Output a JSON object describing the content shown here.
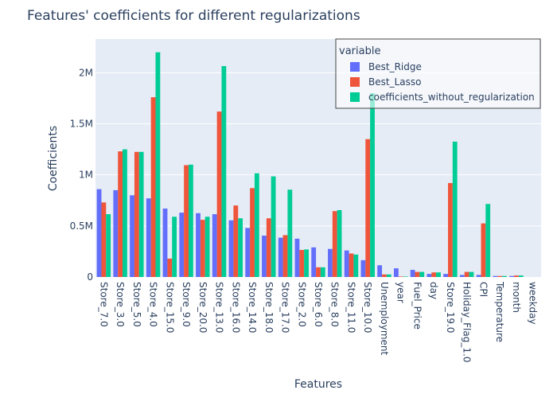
{
  "chart_data": {
    "type": "bar",
    "title": "Features' coefficients for different regularizations",
    "xlabel": "Features",
    "ylabel": "Coefficients",
    "ylim": [
      0,
      2330000
    ],
    "yticks": [
      0,
      500000,
      1000000,
      1500000,
      2000000
    ],
    "ytick_labels": [
      "0",
      "0.5M",
      "1M",
      "1.5M",
      "2M"
    ],
    "grid": true,
    "legend_title": "variable",
    "legend_position": "top-right",
    "categories": [
      "Store_7.0",
      "Store_3.0",
      "Store_5.0",
      "Store_4.0",
      "Store_15.0",
      "Store_9.0",
      "Store_20.0",
      "Store_13.0",
      "Store_16.0",
      "Store_14.0",
      "Store_18.0",
      "Store_17.0",
      "Store_2.0",
      "Store_6.0",
      "Store_8.0",
      "Store_11.0",
      "Store_10.0",
      "Unemployment",
      "year",
      "Fuel_Price",
      "day",
      "Store_19.0",
      "Holiday_Flag_1.0",
      "CPI",
      "Temperature",
      "month",
      "weekday"
    ],
    "series": [
      {
        "name": "Best_Ridge",
        "color": "#636efa",
        "values": [
          860000,
          850000,
          800000,
          770000,
          670000,
          630000,
          625000,
          615000,
          555000,
          480000,
          405000,
          385000,
          375000,
          290000,
          275000,
          260000,
          165000,
          115000,
          85000,
          70000,
          30000,
          30000,
          20000,
          20000,
          10000,
          10000,
          0
        ]
      },
      {
        "name": "Best_Lasso",
        "color": "#ef553b",
        "values": [
          730000,
          1230000,
          1225000,
          1760000,
          180000,
          1095000,
          560000,
          1620000,
          700000,
          870000,
          575000,
          410000,
          265000,
          95000,
          645000,
          230000,
          1350000,
          25000,
          5000,
          50000,
          45000,
          920000,
          50000,
          525000,
          10000,
          15000,
          0
        ]
      },
      {
        "name": "coefficients_without_regularization",
        "color": "#00cc96",
        "values": [
          615000,
          1250000,
          1225000,
          2200000,
          590000,
          1100000,
          590000,
          2065000,
          575000,
          1015000,
          985000,
          855000,
          270000,
          95000,
          655000,
          220000,
          1800000,
          25000,
          5000,
          50000,
          45000,
          1325000,
          50000,
          715000,
          10000,
          15000,
          0
        ]
      }
    ]
  }
}
